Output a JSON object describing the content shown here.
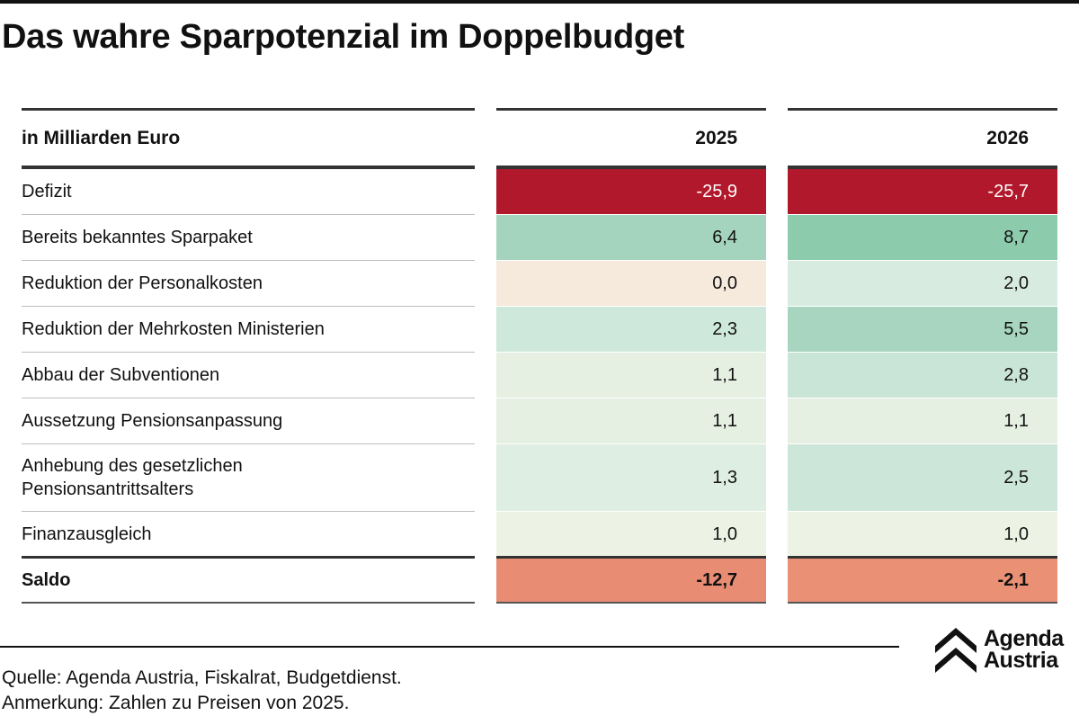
{
  "title": "Das wahre Sparpotenzial im Doppelbudget",
  "source": "Quelle: Agenda Austria, Fiskalrat, Budgetdienst.",
  "note": "Anmerkung: Zahlen zu Preisen von 2025.",
  "logo": {
    "line1": "Agenda",
    "line2": "Austria"
  },
  "chart_data": {
    "type": "table",
    "unit_label": "in Milliarden Euro",
    "columns": [
      "2025",
      "2026"
    ],
    "rows": [
      {
        "label": "Defizit",
        "values": [
          "-25,9",
          "-25,7"
        ],
        "colors": [
          "#b2182b",
          "#b2182b"
        ],
        "kind": "header-row"
      },
      {
        "label": "Bereits bekanntes Sparpaket",
        "values": [
          "6,4",
          "8,7"
        ],
        "colors": [
          "#a5d4be",
          "#8dcbad"
        ]
      },
      {
        "label": "Reduktion der Personalkosten",
        "values": [
          "0,0",
          "2,0"
        ],
        "colors": [
          "#f6eadc",
          "#d8ebe0"
        ]
      },
      {
        "label": "Reduktion der Mehrkosten Ministerien",
        "values": [
          "2,3",
          "5,5"
        ],
        "colors": [
          "#cfe8dc",
          "#a7d5bf"
        ]
      },
      {
        "label": "Abbau der Subventionen",
        "values": [
          "1,1",
          "2,8"
        ],
        "colors": [
          "#e5f0e3",
          "#c9e5d7"
        ]
      },
      {
        "label": "Aussetzung Pensionsanpassung",
        "values": [
          "1,1",
          "1,1"
        ],
        "colors": [
          "#e5f0e3",
          "#e5f0e3"
        ]
      },
      {
        "label": "Anhebung des gesetzlichen Pensionsantrittsalters",
        "label_lines": [
          "Anhebung des gesetzlichen",
          "Pensionsantrittsalters"
        ],
        "values": [
          "1,3",
          "2,5"
        ],
        "colors": [
          "#dfeee2",
          "#cce6da"
        ]
      },
      {
        "label": "Finanzausgleich",
        "values": [
          "1,0",
          "1,0"
        ],
        "colors": [
          "#edf3e4",
          "#edf3e4"
        ]
      },
      {
        "label": "Saldo",
        "values": [
          "-12,7",
          "-2,1"
        ],
        "colors": [
          "#e88d74",
          "#ea9175"
        ],
        "kind": "total"
      }
    ],
    "numeric_values": {
      "2025": [
        -25.9,
        6.4,
        0.0,
        2.3,
        1.1,
        1.1,
        1.3,
        1.0,
        -12.7
      ],
      "2026": [
        -25.7,
        8.7,
        2.0,
        5.5,
        2.8,
        1.1,
        2.5,
        1.0,
        -2.1
      ]
    }
  }
}
